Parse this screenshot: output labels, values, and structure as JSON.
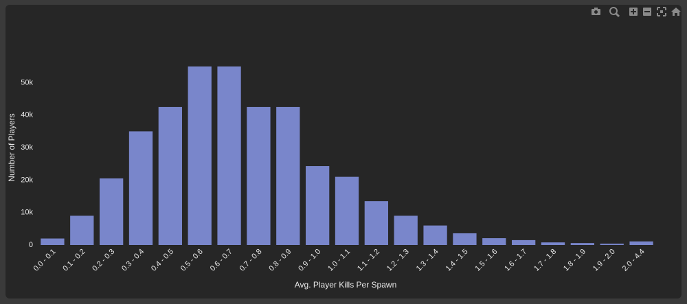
{
  "chart_data": {
    "type": "bar",
    "x_label": "Avg. Player Kills Per Spawn",
    "y_label": "Number of Players",
    "categories": [
      "0.0 - 0.1",
      "0.1 - 0.2",
      "0.2 - 0.3",
      "0.3 - 0.4",
      "0.4 - 0.5",
      "0.5 - 0.6",
      "0.6 - 0.7",
      "0.7 - 0.8",
      "0.8 - 0.9",
      "0.9 - 1.0",
      "1.0 - 1.1",
      "1.1 - 1.2",
      "1.2 - 1.3",
      "1.3 - 1.4",
      "1.4 - 1.5",
      "1.5 - 1.6",
      "1.6 - 1.7",
      "1.7 - 1.8",
      "1.8 - 1.9",
      "1.9 - 2.0",
      "2.0 - 4.4"
    ],
    "values": [
      2000,
      9000,
      20500,
      35000,
      42500,
      55000,
      55000,
      42500,
      42500,
      24300,
      21000,
      13500,
      9000,
      6000,
      3600,
      2100,
      1500,
      800,
      600,
      400,
      1100
    ],
    "color": "#7986cb",
    "ylim": [
      0,
      67000
    ],
    "yticks": [
      0,
      {
        "value": 10000,
        "label": "10k"
      },
      {
        "value": 20000,
        "label": "20k"
      },
      {
        "value": 30000,
        "label": "30k"
      },
      {
        "value": 40000,
        "label": "40k"
      },
      {
        "value": 50000,
        "label": "50k"
      }
    ],
    "grid": false
  }
}
